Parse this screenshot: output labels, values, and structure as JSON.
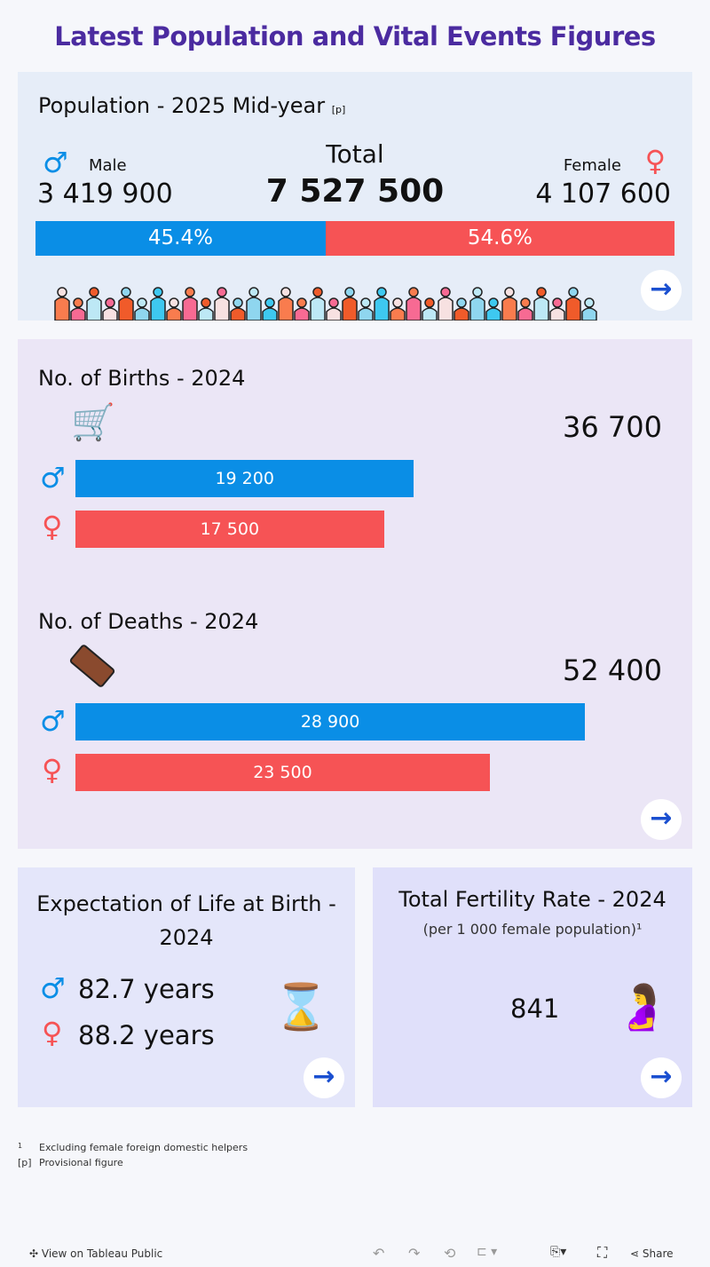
{
  "title": "Latest Population and Vital Events Figures",
  "population": {
    "heading": "Population - 2025 Mid-year",
    "note": "[p]",
    "total_label": "Total",
    "total": "7 527 500",
    "male_label": "Male",
    "male": "3 419 900",
    "female_label": "Female",
    "female": "4 107 600",
    "male_pct": 45.4,
    "female_pct": 54.6,
    "male_pct_label": "45.4%",
    "female_pct_label": "54.6%"
  },
  "births": {
    "heading": "No. of Births - 2024",
    "total": "36 700",
    "male": 19200,
    "female": 17500,
    "male_label": "19 200",
    "female_label": "17 500"
  },
  "deaths": {
    "heading": "No. of Deaths - 2024",
    "total": "52 400",
    "male": 28900,
    "female": 23500,
    "male_label": "28 900",
    "female_label": "23 500"
  },
  "life": {
    "heading": "Expectation of Life at Birth - 2024",
    "male": "82.7 years",
    "female": "88.2 years"
  },
  "tfr": {
    "heading": "Total Fertility Rate - 2024",
    "sub": "(per 1 000 female population)¹",
    "value": "841"
  },
  "footnotes": [
    {
      "mark": "1",
      "text": "Excluding female foreign domestic helpers"
    },
    {
      "mark": "[p]",
      "text": "Provisional figure"
    }
  ],
  "toolbar": {
    "view": "View on Tableau Public",
    "share": "Share"
  },
  "colors": {
    "male": "#0a8ee6",
    "female": "#f65355",
    "title": "#4b2ba0",
    "arrow": "#1a4fd0"
  },
  "icons": {
    "male": "male-symbol",
    "female": "female-symbol",
    "arrow": "arrow-right",
    "births": "stroller",
    "deaths": "coffin",
    "life": "hourglass-elderly",
    "tfr": "pregnant-woman"
  }
}
